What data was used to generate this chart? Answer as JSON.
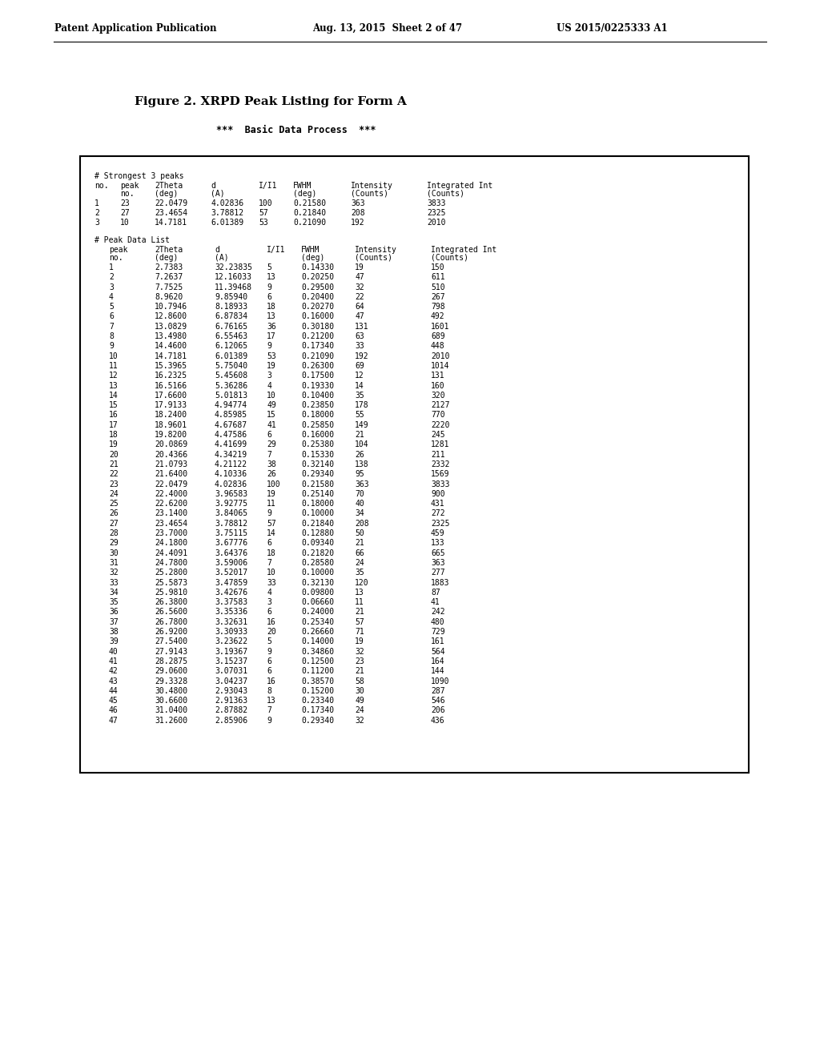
{
  "header_left": "Patent Application Publication",
  "header_mid": "Aug. 13, 2015  Sheet 2 of 47",
  "header_right": "US 2015/0225333 A1",
  "figure_title": "Figure 2. XRPD Peak Listing for Form A",
  "subtitle": "***  Basic Data Process  ***",
  "strongest_header": "# Strongest 3 peaks",
  "strongest_rows": [
    [
      "1",
      "23",
      "22.0479",
      "4.02836",
      "100",
      "0.21580",
      "363",
      "3833"
    ],
    [
      "2",
      "27",
      "23.4654",
      "3.78812",
      "57",
      "0.21840",
      "208",
      "2325"
    ],
    [
      "3",
      "10",
      "14.7181",
      "6.01389",
      "53",
      "0.21090",
      "192",
      "2010"
    ]
  ],
  "peak_data_header": "# Peak Data List",
  "peak_rows": [
    [
      "1",
      "2.7383",
      "32.23835",
      "5",
      "0.14330",
      "19",
      "150"
    ],
    [
      "2",
      "7.2637",
      "12.16033",
      "13",
      "0.20250",
      "47",
      "611"
    ],
    [
      "3",
      "7.7525",
      "11.39468",
      "9",
      "0.29500",
      "32",
      "510"
    ],
    [
      "4",
      "8.9620",
      "9.85940",
      "6",
      "0.20400",
      "22",
      "267"
    ],
    [
      "5",
      "10.7946",
      "8.18933",
      "18",
      "0.20270",
      "64",
      "798"
    ],
    [
      "6",
      "12.8600",
      "6.87834",
      "13",
      "0.16000",
      "47",
      "492"
    ],
    [
      "7",
      "13.0829",
      "6.76165",
      "36",
      "0.30180",
      "131",
      "1601"
    ],
    [
      "8",
      "13.4980",
      "6.55463",
      "17",
      "0.21200",
      "63",
      "689"
    ],
    [
      "9",
      "14.4600",
      "6.12065",
      "9",
      "0.17340",
      "33",
      "448"
    ],
    [
      "10",
      "14.7181",
      "6.01389",
      "53",
      "0.21090",
      "192",
      "2010"
    ],
    [
      "11",
      "15.3965",
      "5.75040",
      "19",
      "0.26300",
      "69",
      "1014"
    ],
    [
      "12",
      "16.2325",
      "5.45608",
      "3",
      "0.17500",
      "12",
      "131"
    ],
    [
      "13",
      "16.5166",
      "5.36286",
      "4",
      "0.19330",
      "14",
      "160"
    ],
    [
      "14",
      "17.6600",
      "5.01813",
      "10",
      "0.10400",
      "35",
      "320"
    ],
    [
      "15",
      "17.9133",
      "4.94774",
      "49",
      "0.23850",
      "178",
      "2127"
    ],
    [
      "16",
      "18.2400",
      "4.85985",
      "15",
      "0.18000",
      "55",
      "770"
    ],
    [
      "17",
      "18.9601",
      "4.67687",
      "41",
      "0.25850",
      "149",
      "2220"
    ],
    [
      "18",
      "19.8200",
      "4.47586",
      "6",
      "0.16000",
      "21",
      "245"
    ],
    [
      "19",
      "20.0869",
      "4.41699",
      "29",
      "0.25380",
      "104",
      "1281"
    ],
    [
      "20",
      "20.4366",
      "4.34219",
      "7",
      "0.15330",
      "26",
      "211"
    ],
    [
      "21",
      "21.0793",
      "4.21122",
      "38",
      "0.32140",
      "138",
      "2332"
    ],
    [
      "22",
      "21.6400",
      "4.10336",
      "26",
      "0.29340",
      "95",
      "1569"
    ],
    [
      "23",
      "22.0479",
      "4.02836",
      "100",
      "0.21580",
      "363",
      "3833"
    ],
    [
      "24",
      "22.4000",
      "3.96583",
      "19",
      "0.25140",
      "70",
      "900"
    ],
    [
      "25",
      "22.6200",
      "3.92775",
      "11",
      "0.18000",
      "40",
      "431"
    ],
    [
      "26",
      "23.1400",
      "3.84065",
      "9",
      "0.10000",
      "34",
      "272"
    ],
    [
      "27",
      "23.4654",
      "3.78812",
      "57",
      "0.21840",
      "208",
      "2325"
    ],
    [
      "28",
      "23.7000",
      "3.75115",
      "14",
      "0.12880",
      "50",
      "459"
    ],
    [
      "29",
      "24.1800",
      "3.67776",
      "6",
      "0.09340",
      "21",
      "133"
    ],
    [
      "30",
      "24.4091",
      "3.64376",
      "18",
      "0.21820",
      "66",
      "665"
    ],
    [
      "31",
      "24.7800",
      "3.59006",
      "7",
      "0.28580",
      "24",
      "363"
    ],
    [
      "32",
      "25.2800",
      "3.52017",
      "10",
      "0.10000",
      "35",
      "277"
    ],
    [
      "33",
      "25.5873",
      "3.47859",
      "33",
      "0.32130",
      "120",
      "1883"
    ],
    [
      "34",
      "25.9810",
      "3.42676",
      "4",
      "0.09800",
      "13",
      "87"
    ],
    [
      "35",
      "26.3800",
      "3.37583",
      "3",
      "0.06660",
      "11",
      "41"
    ],
    [
      "36",
      "26.5600",
      "3.35336",
      "6",
      "0.24000",
      "21",
      "242"
    ],
    [
      "37",
      "26.7800",
      "3.32631",
      "16",
      "0.25340",
      "57",
      "480"
    ],
    [
      "38",
      "26.9200",
      "3.30933",
      "20",
      "0.26660",
      "71",
      "729"
    ],
    [
      "39",
      "27.5400",
      "3.23622",
      "5",
      "0.14000",
      "19",
      "161"
    ],
    [
      "40",
      "27.9143",
      "3.19367",
      "9",
      "0.34860",
      "32",
      "564"
    ],
    [
      "41",
      "28.2875",
      "3.15237",
      "6",
      "0.12500",
      "23",
      "164"
    ],
    [
      "42",
      "29.0600",
      "3.07031",
      "6",
      "0.11200",
      "21",
      "144"
    ],
    [
      "43",
      "29.3328",
      "3.04237",
      "16",
      "0.38570",
      "58",
      "1090"
    ],
    [
      "44",
      "30.4800",
      "2.93043",
      "8",
      "0.15200",
      "30",
      "287"
    ],
    [
      "45",
      "30.6600",
      "2.91363",
      "13",
      "0.23340",
      "49",
      "546"
    ],
    [
      "46",
      "31.0400",
      "2.87882",
      "7",
      "0.17340",
      "24",
      "206"
    ],
    [
      "47",
      "31.2600",
      "2.85906",
      "9",
      "0.29340",
      "32",
      "436"
    ]
  ]
}
